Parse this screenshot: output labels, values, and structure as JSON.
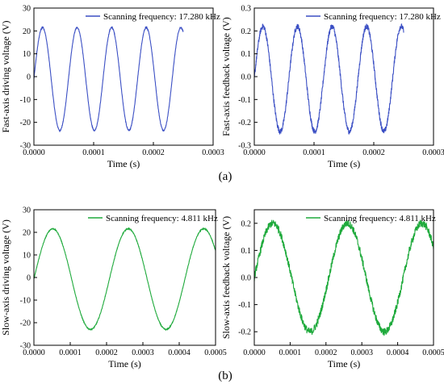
{
  "captions": {
    "a": "(a)",
    "b": "(b)"
  },
  "chart_data": [
    {
      "type": "line",
      "panel": "fast-axis-driving",
      "xlabel": "Time (s)",
      "ylabel": "Fast-axis driving voltage (V)",
      "xlim": [
        0,
        0.0003
      ],
      "ylim": [
        -30,
        30
      ],
      "xticks": [
        "0.0000",
        "0.0001",
        "0.0002",
        "0.0003"
      ],
      "yticks": [
        "-30",
        "-20",
        "-10",
        "0",
        "10",
        "20",
        "30"
      ],
      "legend_position": "top-right",
      "series": [
        {
          "name": "Scanning frequency: 17.280 kHz",
          "color": "#3b4fc4",
          "frequency_hz": 17280,
          "amplitude": 22.5,
          "offset": -1,
          "t_start": 0,
          "t_end": 0.00025,
          "noise": 0.25
        }
      ]
    },
    {
      "type": "line",
      "panel": "fast-axis-feedback",
      "xlabel": "Time (s)",
      "ylabel": "Fast-axis feedback voltage (V)",
      "xlim": [
        0,
        0.0003
      ],
      "ylim": [
        -0.3,
        0.3
      ],
      "xticks": [
        "0.0000",
        "0.0001",
        "0.0002",
        "0.0003"
      ],
      "yticks": [
        "-0.3",
        "-0.2",
        "-0.1",
        "0.0",
        "0.1",
        "0.2",
        "0.3"
      ],
      "legend_position": "top-right",
      "series": [
        {
          "name": "Scanning frequency: 17.280 kHz",
          "color": "#3b4fc4",
          "frequency_hz": 17280,
          "amplitude": 0.23,
          "offset": -0.01,
          "t_start": 0,
          "t_end": 0.00025,
          "noise": 0.012
        }
      ]
    },
    {
      "type": "line",
      "panel": "slow-axis-driving",
      "xlabel": "Time (s)",
      "ylabel": "Slow-axis driving voltage (V)",
      "xlim": [
        0,
        0.0005
      ],
      "ylim": [
        -30,
        30
      ],
      "xticks": [
        "0.0000",
        "0.0001",
        "0.0002",
        "0.0003",
        "0.0004",
        "0.0005"
      ],
      "yticks": [
        "-30",
        "-20",
        "-10",
        "0",
        "10",
        "20",
        "30"
      ],
      "legend_position": "top-right",
      "series": [
        {
          "name": "Scanning frequency: 4.811 kHz",
          "color": "#1faa3c",
          "frequency_hz": 4811,
          "amplitude": 22.3,
          "offset": -0.7,
          "t_start": 0,
          "t_end": 0.0005,
          "noise": 0.2
        }
      ]
    },
    {
      "type": "line",
      "panel": "slow-axis-feedback",
      "xlabel": "Time (s)",
      "ylabel": "Slow-axis feedback voltage (V)",
      "xlim": [
        0,
        0.0005
      ],
      "ylim": [
        -0.25,
        0.25
      ],
      "xticks": [
        "0.0000",
        "0.0001",
        "0.0002",
        "0.0003",
        "0.0004",
        "0.0005"
      ],
      "yticks": [
        "-0.2",
        "-0.1",
        "0.0",
        "0.1",
        "0.2"
      ],
      "legend_position": "top-right",
      "series": [
        {
          "name": "Scanning frequency: 4.811 kHz",
          "color": "#1faa3c",
          "frequency_hz": 4811,
          "amplitude": 0.2,
          "offset": 0.0,
          "t_start": 0,
          "t_end": 0.0005,
          "noise": 0.014
        }
      ]
    }
  ]
}
